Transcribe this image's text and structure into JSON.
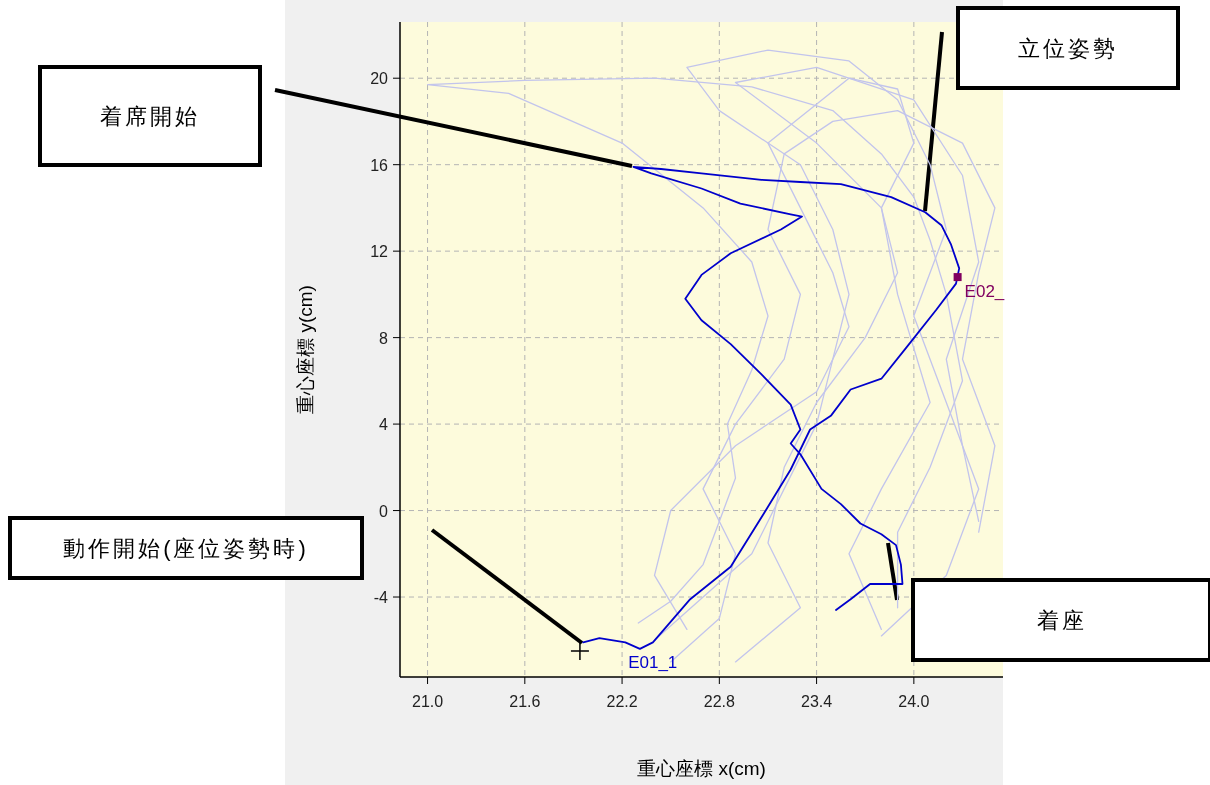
{
  "chart_data": {
    "type": "line",
    "xlabel": "重心座標 x(cm)",
    "ylabel": "重心座標 y(cm)",
    "xlim": [
      20.83,
      24.55
    ],
    "ylim": [
      -7.7,
      22.6
    ],
    "xticks": [
      {
        "value": 21,
        "label": "21.0"
      },
      21.6,
      22.2,
      22.8,
      23.4,
      {
        "value": 24,
        "label": "24.0"
      }
    ],
    "yticks": [
      -4,
      0,
      4,
      8,
      12,
      16,
      20
    ],
    "grid": true,
    "line_style": "solid",
    "series": [
      {
        "color": "#c2c4ec",
        "x": [
          22.3,
          22.5,
          22.7,
          22.8,
          22.9,
          22.85,
          23.0,
          23.1,
          23.0,
          22.7,
          22.2,
          21.5,
          21.0,
          21.6,
          22.4,
          23.0,
          23.5,
          23.8,
          24.0,
          24.1,
          24.2,
          24.3,
          24.1,
          23.9,
          23.9
        ],
        "values": [
          -5.2,
          -4.2,
          -2.5,
          -0.5,
          1.5,
          4.0,
          6.5,
          9.0,
          11.5,
          14.0,
          17.0,
          19.3,
          19.7,
          19.9,
          20.0,
          19.6,
          18.5,
          16.5,
          14.5,
          12.5,
          10.0,
          6.0,
          2.0,
          -1.0,
          -4.5
        ]
      },
      {
        "color": "#c2c4ec",
        "x": [
          22.4,
          22.7,
          23.0,
          23.2,
          23.4,
          23.5,
          23.6,
          23.5,
          23.3,
          22.8,
          22.6,
          23.1,
          23.6,
          23.9,
          24.1,
          24.2,
          24.0,
          24.2,
          24.4,
          24.2,
          23.8
        ],
        "values": [
          -6.0,
          -4.0,
          -2.0,
          1.0,
          4.0,
          7.0,
          10.0,
          13.0,
          16.0,
          18.5,
          20.5,
          21.3,
          20.8,
          19.0,
          16.0,
          13.0,
          9.0,
          5.0,
          1.0,
          -3.0,
          -5.8
        ]
      },
      {
        "color": "#c2c4ec",
        "x": [
          22.5,
          22.8,
          22.9,
          22.7,
          22.9,
          23.2,
          23.3,
          23.1,
          23.2,
          23.5,
          23.9,
          24.3,
          24.5,
          24.4,
          24.3,
          24.5,
          24.4
        ],
        "values": [
          -7.0,
          -5.0,
          -2.0,
          1.0,
          4.0,
          7.0,
          10.0,
          13.0,
          16.5,
          18.0,
          18.5,
          17.0,
          14.0,
          11.0,
          7.0,
          3.0,
          -1.0
        ]
      },
      {
        "color": "#c2c4ec",
        "x": [
          22.6,
          22.4,
          22.5,
          22.9,
          23.4,
          23.6,
          23.5,
          23.3,
          23.1,
          23.6,
          23.9,
          24.0,
          23.8,
          23.9,
          24.1,
          23.8,
          23.6,
          23.8
        ],
        "values": [
          -5.5,
          -3.0,
          0.0,
          3.0,
          5.5,
          8.5,
          11.0,
          14.0,
          17.0,
          20.0,
          19.5,
          17.0,
          14.0,
          10.0,
          5.0,
          1.0,
          -2.0,
          -5.5
        ]
      },
      {
        "color": "#c2c4ec",
        "x": [
          22.9,
          23.3,
          23.1,
          23.2,
          23.4,
          23.7,
          23.9,
          23.8,
          23.4,
          22.9,
          23.4,
          24.0,
          24.3,
          24.4,
          24.2,
          24.3,
          24.4
        ],
        "values": [
          -7.0,
          -4.5,
          -1.5,
          2.0,
          5.0,
          8.0,
          11.0,
          14.0,
          17.0,
          19.8,
          20.5,
          19.0,
          15.5,
          11.5,
          7.0,
          3.0,
          -0.5
        ]
      },
      {
        "name": "E01_1",
        "color": "#0000cc",
        "x": [
          21.96,
          22.06,
          22.22,
          22.31,
          22.39,
          22.62,
          22.87,
          23.09,
          23.24,
          23.36,
          23.49,
          23.61,
          23.8,
          23.95,
          24.14,
          24.26,
          24.28,
          24.23,
          24.17,
          24.07,
          23.86,
          23.55,
          23.3,
          23.06,
          22.69,
          22.44,
          22.27,
          22.38,
          22.69,
          22.93,
          23.24,
          23.31,
          23.18,
          22.87,
          22.69,
          22.59,
          22.69,
          22.87,
          23.06,
          23.24,
          23.3,
          23.24,
          23.3,
          23.43,
          23.55,
          23.67,
          23.8,
          23.89,
          23.92,
          23.93,
          23.73,
          23.61,
          23.52
        ],
        "values": [
          -6.1,
          -5.9,
          -6.1,
          -6.4,
          -6.1,
          -4.1,
          -2.6,
          0.05,
          1.9,
          3.75,
          4.4,
          5.6,
          6.1,
          7.5,
          9.3,
          10.5,
          11.2,
          12.3,
          13.2,
          13.8,
          14.5,
          15.1,
          15.2,
          15.3,
          15.6,
          15.8,
          15.9,
          15.6,
          14.9,
          14.2,
          13.7,
          13.6,
          13.0,
          11.9,
          10.9,
          9.8,
          8.8,
          7.7,
          6.3,
          4.9,
          3.75,
          3.1,
          2.6,
          1.0,
          0.3,
          -0.6,
          -1.1,
          -1.6,
          -2.5,
          -3.4,
          -3.4,
          -4.1,
          -4.6
        ]
      },
      {
        "type": "scatter",
        "name": "E02_",
        "marker": "square",
        "color": "#800060",
        "x": [
          24.27
        ],
        "values": [
          10.8
        ]
      },
      {
        "type": "scatter",
        "marker": "cross",
        "color": "#000000",
        "x": [
          21.94
        ],
        "values": [
          -6.5
        ]
      }
    ],
    "annotations": [
      "着席開始",
      "立位姿勢",
      "動作開始(座位姿勢時)",
      "着座"
    ]
  }
}
